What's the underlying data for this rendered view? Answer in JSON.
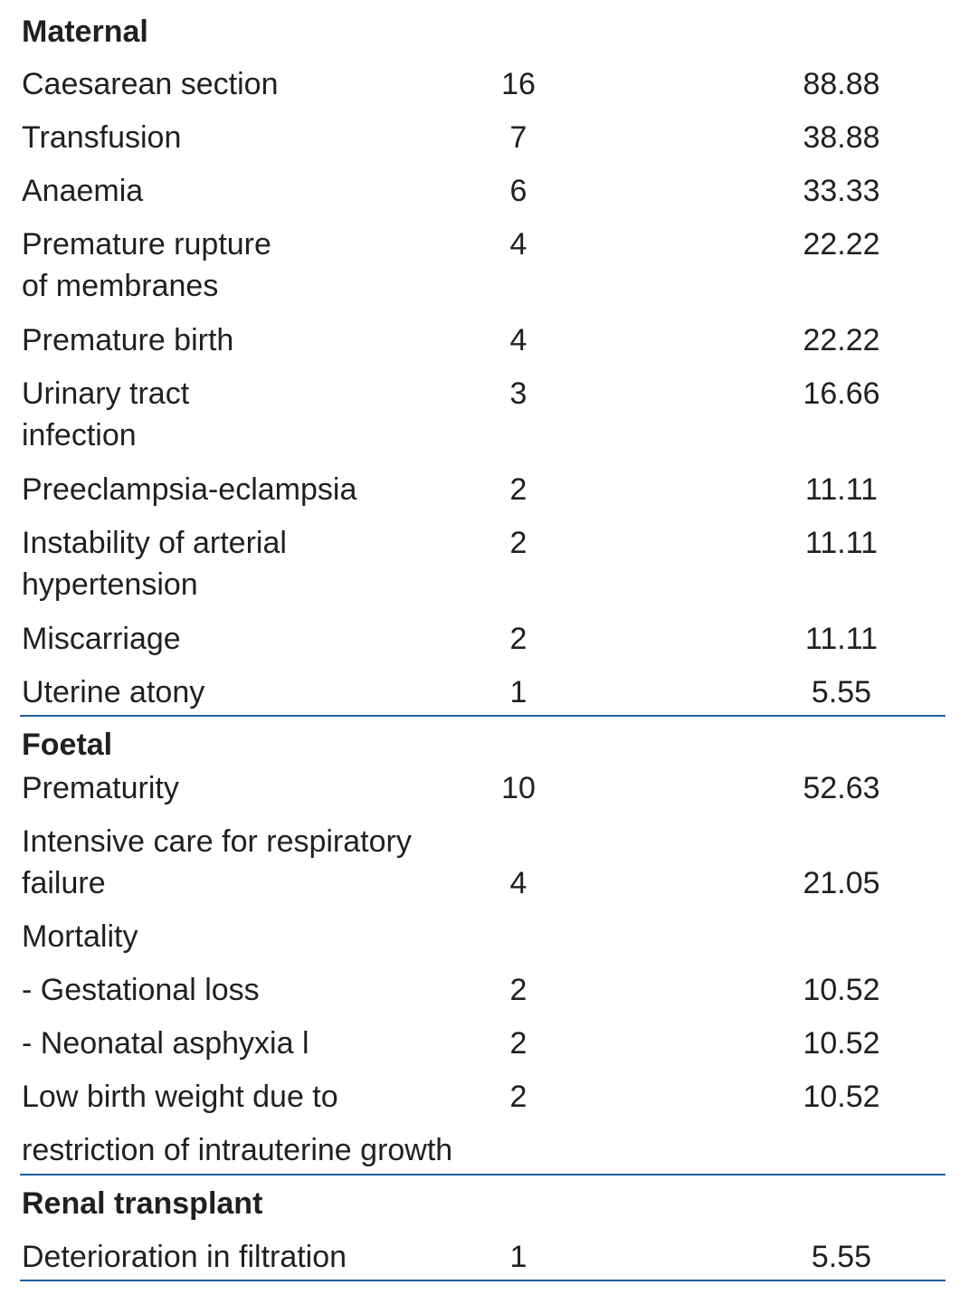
{
  "table": {
    "sections": [
      {
        "title": "Maternal",
        "rows": [
          {
            "label": [
              "Caesarean section"
            ],
            "n": 16,
            "pct": 88.88
          },
          {
            "label": [
              "Transfusion"
            ],
            "n": 7,
            "pct": 38.88
          },
          {
            "label": [
              "Anaemia"
            ],
            "n": 6,
            "pct": 33.33
          },
          {
            "label": [
              "Premature rupture",
              "of membranes"
            ],
            "n": 4,
            "pct": 22.22
          },
          {
            "label": [
              "Premature birth"
            ],
            "n": 4,
            "pct": 22.22
          },
          {
            "label": [
              "Urinary tract",
              "infection"
            ],
            "n": 3,
            "pct": 16.66
          },
          {
            "label": [
              "Preeclampsia-eclampsia"
            ],
            "n": 2,
            "pct": 11.11
          },
          {
            "label": [
              "Instability of arterial",
              "hypertension"
            ],
            "n": 2,
            "pct": 11.11
          },
          {
            "label": [
              "Miscarriage"
            ],
            "n": 2,
            "pct": 11.11
          },
          {
            "label": [
              "Uterine atony"
            ],
            "n": 1,
            "pct": 5.55
          }
        ]
      },
      {
        "title": "Foetal",
        "rows": [
          {
            "label": [
              "Prematurity"
            ],
            "n": 10,
            "pct": 52.63
          },
          {
            "label": [
              "Intensive care for respiratory",
              "failure"
            ],
            "n": 4,
            "pct": 21.05
          },
          {
            "label": [
              "Mortality"
            ]
          },
          {
            "label": [
              "- Gestational loss"
            ],
            "n": 2,
            "pct": 10.52
          },
          {
            "label": [
              "- Neonatal asphyxia l"
            ],
            "n": 2,
            "pct": 10.52
          },
          {
            "label": [
              "Low birth weight due to",
              "restriction of intrauterine growth"
            ],
            "n": 2,
            "pct": 10.52
          }
        ]
      },
      {
        "title": "Renal transplant",
        "rows": [
          {
            "label": [
              "Deterioration in filtration"
            ],
            "n": 1,
            "pct": 5.55
          }
        ]
      }
    ]
  }
}
